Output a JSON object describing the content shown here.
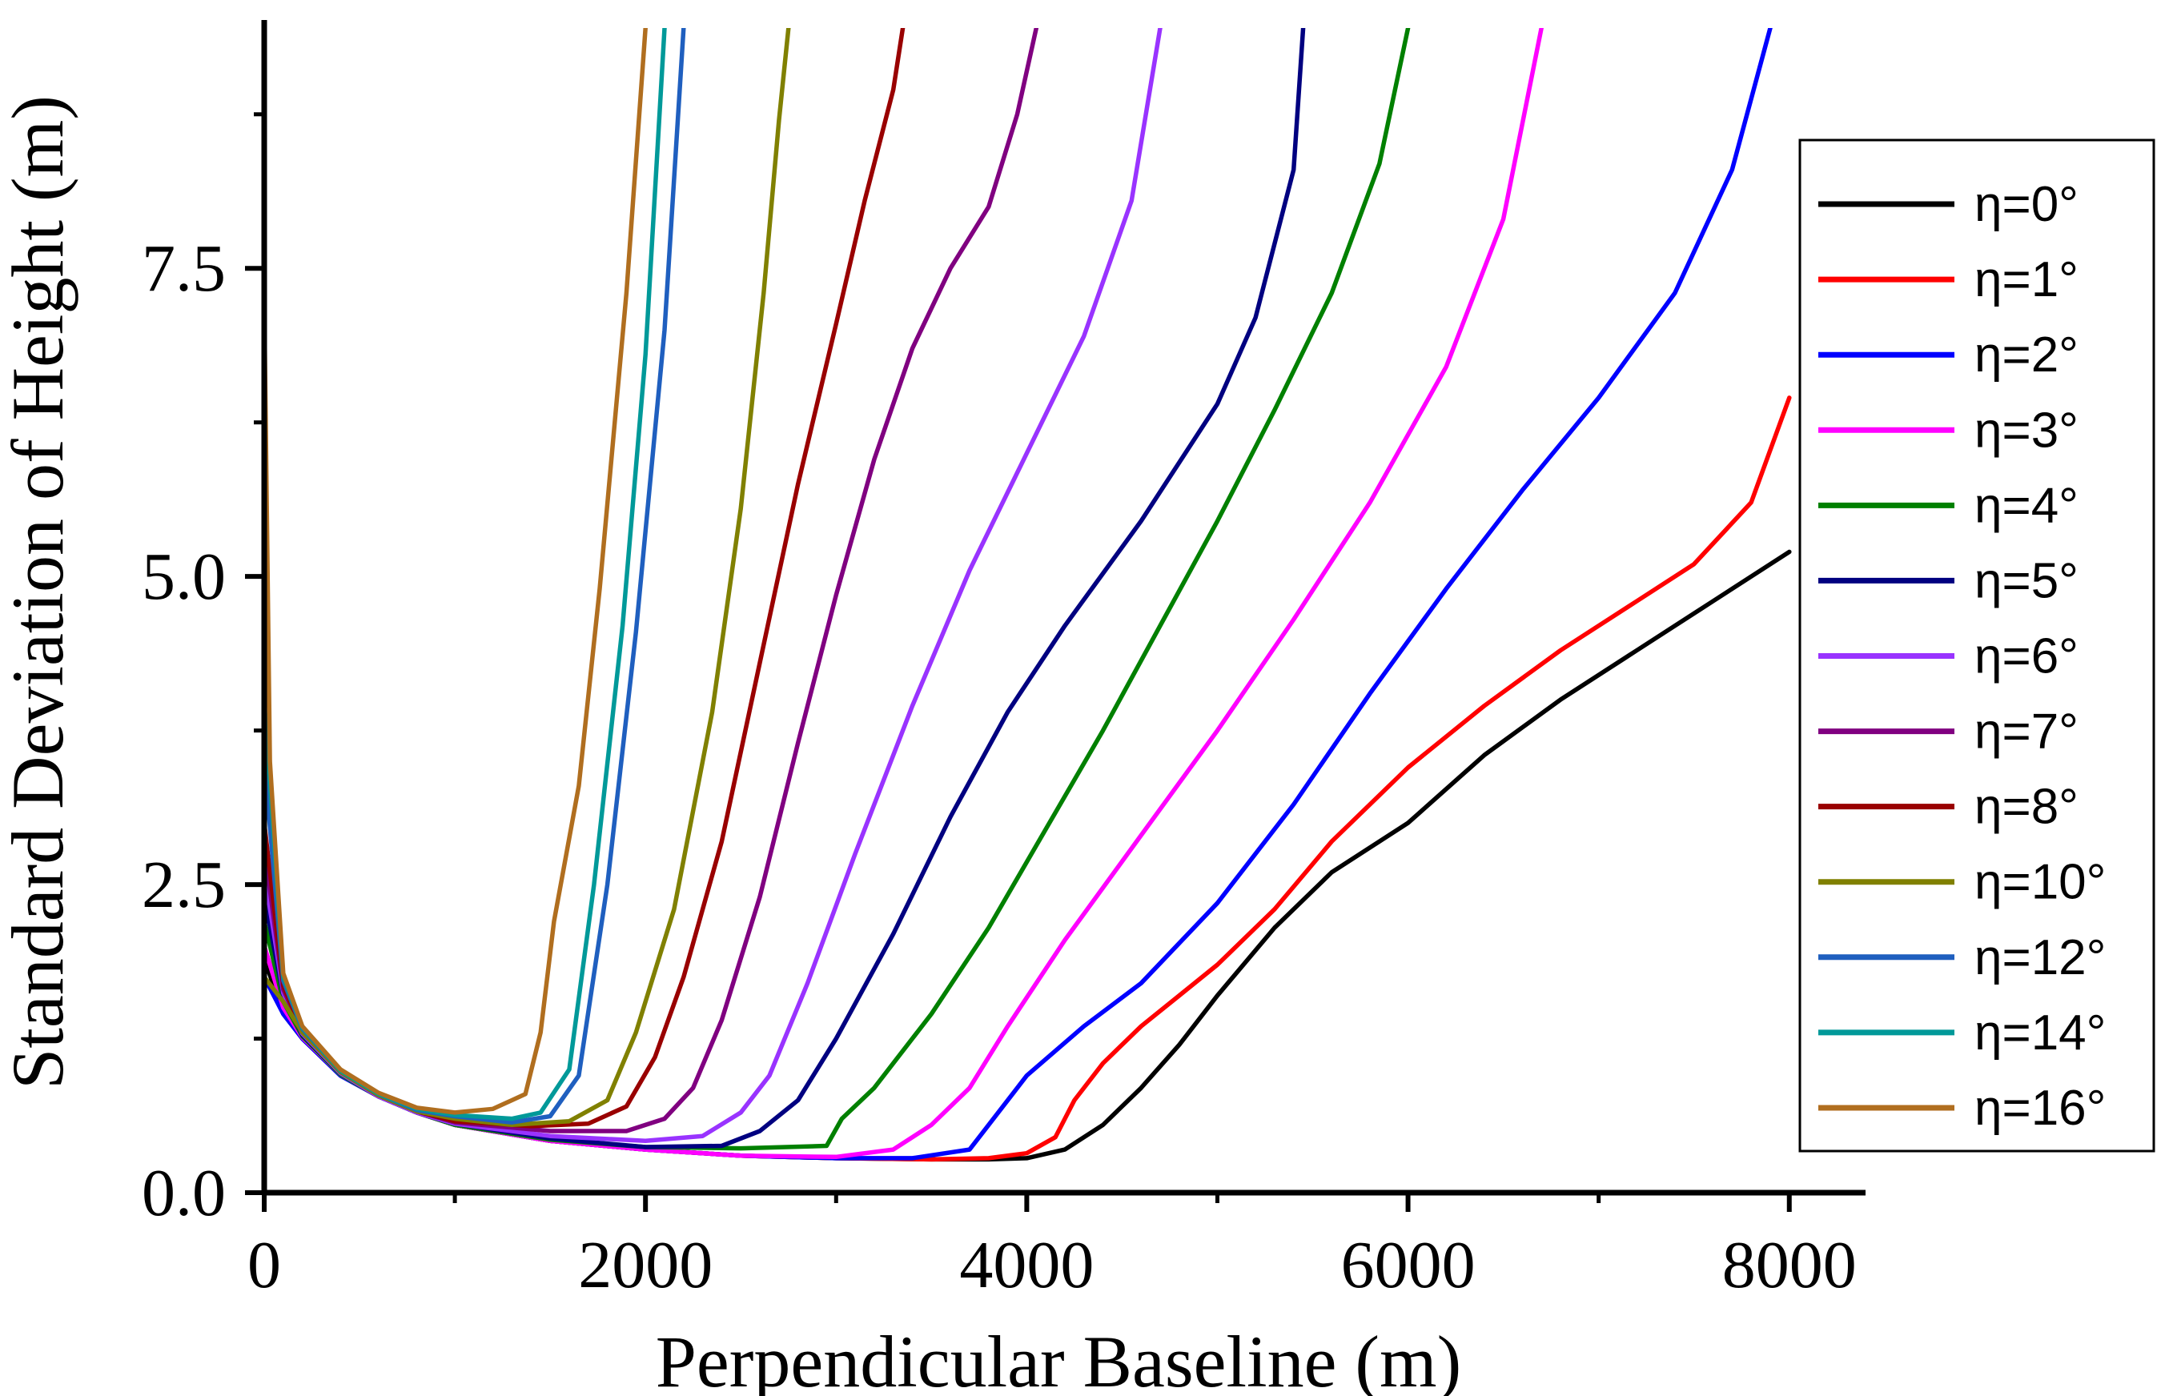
{
  "chart_data": {
    "type": "line",
    "title": "",
    "xlabel": "Perpendicular Baseline (m)",
    "ylabel": "Standard Deviation of Height (m)",
    "xlim": [
      0,
      8400
    ],
    "ylim": [
      0,
      9.45
    ],
    "x_ticks": [
      "0",
      "2000",
      "4000",
      "6000",
      "8000"
    ],
    "y_ticks": [
      "0.0",
      "2.5",
      "5.0",
      "7.5"
    ],
    "legend_position": "right",
    "series": [
      {
        "name": "η=0°",
        "color": "#000000",
        "points": [
          [
            0,
            1.9
          ],
          [
            100,
            1.45
          ],
          [
            200,
            1.25
          ],
          [
            400,
            0.95
          ],
          [
            600,
            0.78
          ],
          [
            800,
            0.65
          ],
          [
            1000,
            0.55
          ],
          [
            1500,
            0.42
          ],
          [
            2000,
            0.35
          ],
          [
            2500,
            0.3
          ],
          [
            3000,
            0.28
          ],
          [
            3500,
            0.27
          ],
          [
            3800,
            0.27
          ],
          [
            4000,
            0.28
          ],
          [
            4200,
            0.35
          ],
          [
            4400,
            0.55
          ],
          [
            4600,
            0.85
          ],
          [
            4800,
            1.2
          ],
          [
            5000,
            1.6
          ],
          [
            5300,
            2.15
          ],
          [
            5600,
            2.6
          ],
          [
            6000,
            3.0
          ],
          [
            6400,
            3.55
          ],
          [
            6800,
            4.0
          ],
          [
            7200,
            4.4
          ],
          [
            7600,
            4.8
          ],
          [
            8000,
            5.2
          ]
        ]
      },
      {
        "name": "η=1°",
        "color": "#ff0000",
        "points": [
          [
            0,
            2.0
          ],
          [
            100,
            1.5
          ],
          [
            200,
            1.26
          ],
          [
            400,
            0.96
          ],
          [
            600,
            0.78
          ],
          [
            800,
            0.65
          ],
          [
            1000,
            0.55
          ],
          [
            1500,
            0.42
          ],
          [
            2000,
            0.35
          ],
          [
            2500,
            0.3
          ],
          [
            3000,
            0.28
          ],
          [
            3500,
            0.27
          ],
          [
            3800,
            0.28
          ],
          [
            4000,
            0.32
          ],
          [
            4150,
            0.45
          ],
          [
            4250,
            0.75
          ],
          [
            4400,
            1.05
          ],
          [
            4600,
            1.35
          ],
          [
            4800,
            1.6
          ],
          [
            5000,
            1.85
          ],
          [
            5300,
            2.3
          ],
          [
            5600,
            2.85
          ],
          [
            6000,
            3.45
          ],
          [
            6400,
            3.95
          ],
          [
            6800,
            4.4
          ],
          [
            7200,
            4.8
          ],
          [
            7500,
            5.1
          ],
          [
            7800,
            5.6
          ],
          [
            8000,
            6.45
          ]
        ]
      },
      {
        "name": "η=2°",
        "color": "#0000ff",
        "points": [
          [
            0,
            1.75
          ],
          [
            100,
            1.45
          ],
          [
            200,
            1.25
          ],
          [
            400,
            0.95
          ],
          [
            600,
            0.78
          ],
          [
            800,
            0.65
          ],
          [
            1000,
            0.55
          ],
          [
            1500,
            0.42
          ],
          [
            2000,
            0.35
          ],
          [
            2500,
            0.3
          ],
          [
            3000,
            0.28
          ],
          [
            3400,
            0.28
          ],
          [
            3700,
            0.35
          ],
          [
            3800,
            0.55
          ],
          [
            4000,
            0.95
          ],
          [
            4300,
            1.35
          ],
          [
            4600,
            1.7
          ],
          [
            5000,
            2.35
          ],
          [
            5400,
            3.15
          ],
          [
            5800,
            4.05
          ],
          [
            6200,
            4.9
          ],
          [
            6600,
            5.7
          ],
          [
            7000,
            6.45
          ],
          [
            7400,
            7.3
          ],
          [
            7700,
            8.3
          ],
          [
            7900,
            9.45
          ]
        ]
      },
      {
        "name": "η=3°",
        "color": "#ff00ff",
        "points": [
          [
            0,
            2.0
          ],
          [
            100,
            1.5
          ],
          [
            200,
            1.26
          ],
          [
            400,
            0.96
          ],
          [
            600,
            0.78
          ],
          [
            800,
            0.65
          ],
          [
            1000,
            0.55
          ],
          [
            1500,
            0.42
          ],
          [
            2000,
            0.35
          ],
          [
            2500,
            0.3
          ],
          [
            3000,
            0.29
          ],
          [
            3300,
            0.35
          ],
          [
            3500,
            0.55
          ],
          [
            3700,
            0.85
          ],
          [
            3900,
            1.35
          ],
          [
            4200,
            2.05
          ],
          [
            4600,
            2.9
          ],
          [
            5000,
            3.75
          ],
          [
            5400,
            4.65
          ],
          [
            5800,
            5.6
          ],
          [
            6200,
            6.7
          ],
          [
            6500,
            7.9
          ],
          [
            6700,
            9.45
          ]
        ]
      },
      {
        "name": "η=4°",
        "color": "#008000",
        "points": [
          [
            0,
            2.2
          ],
          [
            100,
            1.55
          ],
          [
            200,
            1.27
          ],
          [
            400,
            0.96
          ],
          [
            600,
            0.78
          ],
          [
            800,
            0.65
          ],
          [
            1000,
            0.55
          ],
          [
            1500,
            0.43
          ],
          [
            2000,
            0.37
          ],
          [
            2500,
            0.36
          ],
          [
            2950,
            0.38
          ],
          [
            3030,
            0.6
          ],
          [
            3200,
            0.85
          ],
          [
            3500,
            1.45
          ],
          [
            3800,
            2.15
          ],
          [
            4100,
            2.95
          ],
          [
            4400,
            3.75
          ],
          [
            4700,
            4.6
          ],
          [
            5000,
            5.45
          ],
          [
            5300,
            6.35
          ],
          [
            5600,
            7.3
          ],
          [
            5850,
            8.35
          ],
          [
            6000,
            9.45
          ]
        ]
      },
      {
        "name": "η=5°",
        "color": "#000080",
        "points": [
          [
            0,
            2.4
          ],
          [
            100,
            1.6
          ],
          [
            200,
            1.28
          ],
          [
            400,
            0.97
          ],
          [
            600,
            0.78
          ],
          [
            800,
            0.65
          ],
          [
            1000,
            0.56
          ],
          [
            1500,
            0.44
          ],
          [
            2000,
            0.37
          ],
          [
            2400,
            0.38
          ],
          [
            2600,
            0.5
          ],
          [
            2800,
            0.75
          ],
          [
            3000,
            1.25
          ],
          [
            3300,
            2.1
          ],
          [
            3600,
            3.05
          ],
          [
            3900,
            3.9
          ],
          [
            4200,
            4.6
          ],
          [
            4600,
            5.45
          ],
          [
            5000,
            6.4
          ],
          [
            5200,
            7.1
          ],
          [
            5400,
            8.3
          ],
          [
            5450,
            9.45
          ]
        ]
      },
      {
        "name": "η=6°",
        "color": "#9933ff",
        "points": [
          [
            0,
            2.6
          ],
          [
            100,
            1.62
          ],
          [
            200,
            1.29
          ],
          [
            400,
            0.97
          ],
          [
            600,
            0.78
          ],
          [
            800,
            0.65
          ],
          [
            1000,
            0.56
          ],
          [
            1500,
            0.46
          ],
          [
            2000,
            0.42
          ],
          [
            2300,
            0.46
          ],
          [
            2500,
            0.65
          ],
          [
            2650,
            0.95
          ],
          [
            2850,
            1.7
          ],
          [
            3100,
            2.75
          ],
          [
            3400,
            3.95
          ],
          [
            3700,
            5.05
          ],
          [
            4000,
            6.0
          ],
          [
            4300,
            6.95
          ],
          [
            4550,
            8.05
          ],
          [
            4700,
            9.45
          ]
        ]
      },
      {
        "name": "η=7°",
        "color": "#800080",
        "points": [
          [
            0,
            2.8
          ],
          [
            100,
            1.65
          ],
          [
            200,
            1.3
          ],
          [
            400,
            0.98
          ],
          [
            600,
            0.79
          ],
          [
            800,
            0.66
          ],
          [
            1000,
            0.57
          ],
          [
            1500,
            0.5
          ],
          [
            1900,
            0.5
          ],
          [
            2100,
            0.6
          ],
          [
            2250,
            0.85
          ],
          [
            2400,
            1.4
          ],
          [
            2600,
            2.4
          ],
          [
            2800,
            3.65
          ],
          [
            3000,
            4.85
          ],
          [
            3200,
            5.95
          ],
          [
            3400,
            6.85
          ],
          [
            3600,
            7.5
          ],
          [
            3800,
            8.0
          ],
          [
            3950,
            8.75
          ],
          [
            4050,
            9.45
          ]
        ]
      },
      {
        "name": "η=8°",
        "color": "#990000",
        "points": [
          [
            0,
            3.0
          ],
          [
            100,
            1.68
          ],
          [
            200,
            1.31
          ],
          [
            400,
            0.98
          ],
          [
            600,
            0.79
          ],
          [
            800,
            0.66
          ],
          [
            1000,
            0.58
          ],
          [
            1400,
            0.54
          ],
          [
            1700,
            0.56
          ],
          [
            1900,
            0.7
          ],
          [
            2050,
            1.1
          ],
          [
            2200,
            1.75
          ],
          [
            2400,
            2.85
          ],
          [
            2600,
            4.3
          ],
          [
            2800,
            5.75
          ],
          [
            3000,
            7.05
          ],
          [
            3150,
            8.05
          ],
          [
            3300,
            8.95
          ],
          [
            3350,
            9.45
          ]
        ]
      },
      {
        "name": "η=10°",
        "color": "#808000",
        "points": [
          [
            0,
            1.75
          ],
          [
            100,
            1.55
          ],
          [
            200,
            1.3
          ],
          [
            400,
            0.98
          ],
          [
            600,
            0.79
          ],
          [
            800,
            0.66
          ],
          [
            1000,
            0.6
          ],
          [
            1300,
            0.55
          ],
          [
            1600,
            0.58
          ],
          [
            1800,
            0.75
          ],
          [
            1950,
            1.3
          ],
          [
            2150,
            2.3
          ],
          [
            2350,
            3.9
          ],
          [
            2500,
            5.55
          ],
          [
            2620,
            7.3
          ],
          [
            2700,
            8.7
          ],
          [
            2750,
            9.45
          ]
        ]
      },
      {
        "name": "η=12°",
        "color": "#1f5fbf",
        "points": [
          [
            0,
            3.5
          ],
          [
            100,
            1.72
          ],
          [
            200,
            1.33
          ],
          [
            400,
            0.99
          ],
          [
            600,
            0.8
          ],
          [
            800,
            0.67
          ],
          [
            1000,
            0.62
          ],
          [
            1300,
            0.57
          ],
          [
            1500,
            0.62
          ],
          [
            1650,
            0.95
          ],
          [
            1800,
            2.5
          ],
          [
            1950,
            4.55
          ],
          [
            2100,
            7.0
          ],
          [
            2200,
            9.45
          ]
        ]
      },
      {
        "name": "η=14°",
        "color": "#009999",
        "points": [
          [
            0,
            4.0
          ],
          [
            100,
            1.75
          ],
          [
            200,
            1.34
          ],
          [
            400,
            0.99
          ],
          [
            600,
            0.8
          ],
          [
            800,
            0.68
          ],
          [
            1000,
            0.63
          ],
          [
            1300,
            0.6
          ],
          [
            1450,
            0.65
          ],
          [
            1600,
            1.0
          ],
          [
            1730,
            2.5
          ],
          [
            1880,
            4.6
          ],
          [
            2000,
            6.8
          ],
          [
            2100,
            9.45
          ]
        ]
      },
      {
        "name": "η=16°",
        "color": "#b06e1f",
        "points": [
          [
            0,
            7.25
          ],
          [
            30,
            3.5
          ],
          [
            100,
            1.78
          ],
          [
            200,
            1.35
          ],
          [
            400,
            1.0
          ],
          [
            600,
            0.81
          ],
          [
            800,
            0.69
          ],
          [
            1000,
            0.65
          ],
          [
            1200,
            0.68
          ],
          [
            1370,
            0.8
          ],
          [
            1450,
            1.3
          ],
          [
            1520,
            2.2
          ],
          [
            1650,
            3.3
          ],
          [
            1760,
            4.9
          ],
          [
            1900,
            7.3
          ],
          [
            2000,
            9.45
          ]
        ]
      }
    ]
  }
}
